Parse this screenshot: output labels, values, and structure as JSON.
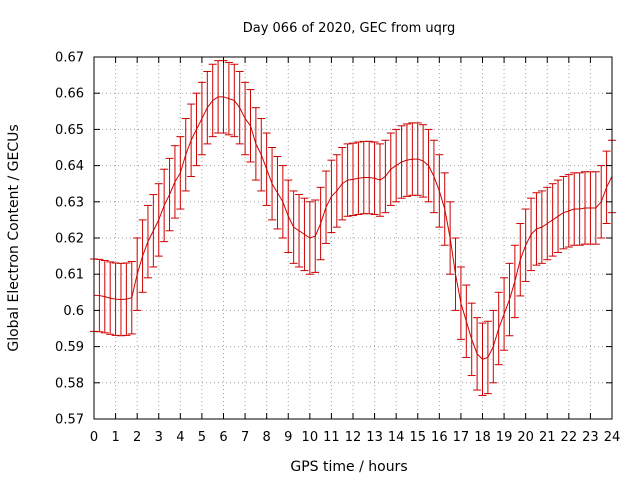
{
  "chart_data": {
    "type": "line",
    "title": "Day 066 of 2020, GEC from uqrg",
    "xlabel": "GPS time / hours",
    "ylabel": "Global Electron Content / GECUs",
    "xlim": [
      0,
      24
    ],
    "ylim": [
      0.57,
      0.67
    ],
    "xticks": [
      "0",
      "1",
      "2",
      "3",
      "4",
      "5",
      "6",
      "7",
      "8",
      "9",
      "10",
      "11",
      "12",
      "13",
      "14",
      "15",
      "16",
      "17",
      "18",
      "19",
      "20",
      "21",
      "22",
      "23",
      "24"
    ],
    "yticks": [
      "0.57",
      "0.58",
      "0.59",
      "0.6",
      "0.61",
      "0.62",
      "0.63",
      "0.64",
      "0.65",
      "0.66",
      "0.67"
    ],
    "grid": true,
    "legend": "none",
    "color": "#cc0000",
    "error_bar": 0.01,
    "x": [
      0,
      0.25,
      0.5,
      0.75,
      1,
      1.25,
      1.5,
      1.75,
      2,
      2.25,
      2.5,
      2.75,
      3,
      3.25,
      3.5,
      3.75,
      4,
      4.25,
      4.5,
      4.75,
      5,
      5.25,
      5.5,
      5.75,
      6,
      6.25,
      6.5,
      6.75,
      7,
      7.25,
      7.5,
      7.75,
      8,
      8.25,
      8.5,
      8.75,
      9,
      9.25,
      9.5,
      9.75,
      10,
      10.25,
      10.5,
      10.75,
      11,
      11.25,
      11.5,
      11.75,
      12,
      12.25,
      12.5,
      12.75,
      13,
      13.25,
      13.5,
      13.75,
      14,
      14.25,
      14.5,
      14.75,
      15,
      15.25,
      15.5,
      15.75,
      16,
      16.25,
      16.5,
      16.75,
      17,
      17.25,
      17.5,
      17.75,
      18,
      18.25,
      18.5,
      18.75,
      19,
      19.25,
      19.5,
      19.75,
      20,
      20.25,
      20.5,
      20.75,
      21,
      21.25,
      21.5,
      21.75,
      22,
      22.25,
      22.5,
      22.75,
      23,
      23.25,
      23.5,
      23.75,
      24
    ],
    "y": [
      0.6042,
      0.6041,
      0.6038,
      0.6034,
      0.6031,
      0.603,
      0.6031,
      0.6035,
      0.61,
      0.615,
      0.619,
      0.622,
      0.625,
      0.629,
      0.632,
      0.6355,
      0.638,
      0.643,
      0.647,
      0.65,
      0.653,
      0.656,
      0.658,
      0.659,
      0.659,
      0.6585,
      0.658,
      0.656,
      0.653,
      0.651,
      0.646,
      0.643,
      0.639,
      0.635,
      0.6325,
      0.63,
      0.626,
      0.623,
      0.622,
      0.621,
      0.62,
      0.6205,
      0.624,
      0.6285,
      0.6315,
      0.633,
      0.635,
      0.636,
      0.6362,
      0.6365,
      0.6367,
      0.6367,
      0.6365,
      0.636,
      0.637,
      0.639,
      0.64,
      0.641,
      0.6415,
      0.6418,
      0.6418,
      0.6413,
      0.64,
      0.637,
      0.633,
      0.628,
      0.62,
      0.61,
      0.602,
      0.597,
      0.592,
      0.588,
      0.5865,
      0.587,
      0.59,
      0.595,
      0.599,
      0.603,
      0.608,
      0.614,
      0.618,
      0.621,
      0.6225,
      0.623,
      0.624,
      0.625,
      0.626,
      0.627,
      0.6275,
      0.628,
      0.628,
      0.6283,
      0.6283,
      0.6283,
      0.63,
      0.634,
      0.637
    ]
  }
}
